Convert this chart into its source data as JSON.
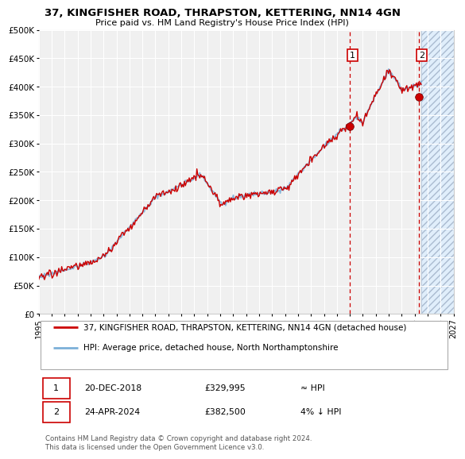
{
  "title": "37, KINGFISHER ROAD, THRAPSTON, KETTERING, NN14 4GN",
  "subtitle": "Price paid vs. HM Land Registry's House Price Index (HPI)",
  "hpi_line_color": "#7cb0d8",
  "price_line_color": "#cc0000",
  "background_color": "#ffffff",
  "plot_bg_color": "#f0f0f0",
  "grid_color": "#ffffff",
  "future_bg_color": "#ddeeff",
  "sale1_date": 2019.0,
  "sale1_price": 329995,
  "sale2_date": 2024.32,
  "sale2_price": 382500,
  "xmin": 1995,
  "xmax": 2027,
  "ymin": 0,
  "ymax": 500000,
  "yticks": [
    0,
    50000,
    100000,
    150000,
    200000,
    250000,
    300000,
    350000,
    400000,
    450000,
    500000
  ],
  "ytick_labels": [
    "£0",
    "£50K",
    "£100K",
    "£150K",
    "£200K",
    "£250K",
    "£300K",
    "£350K",
    "£400K",
    "£450K",
    "£500K"
  ],
  "legend_line1": "37, KINGFISHER ROAD, THRAPSTON, KETTERING, NN14 4GN (detached house)",
  "legend_line2": "HPI: Average price, detached house, North Northamptonshire",
  "footnote": "Contains HM Land Registry data © Crown copyright and database right 2024.\nThis data is licensed under the Open Government Licence v3.0.",
  "table_row1": [
    "1",
    "20-DEC-2018",
    "£329,995",
    "≈ HPI"
  ],
  "table_row2": [
    "2",
    "24-APR-2024",
    "£382,500",
    "4% ↓ HPI"
  ],
  "forecast_start": 2024.5
}
